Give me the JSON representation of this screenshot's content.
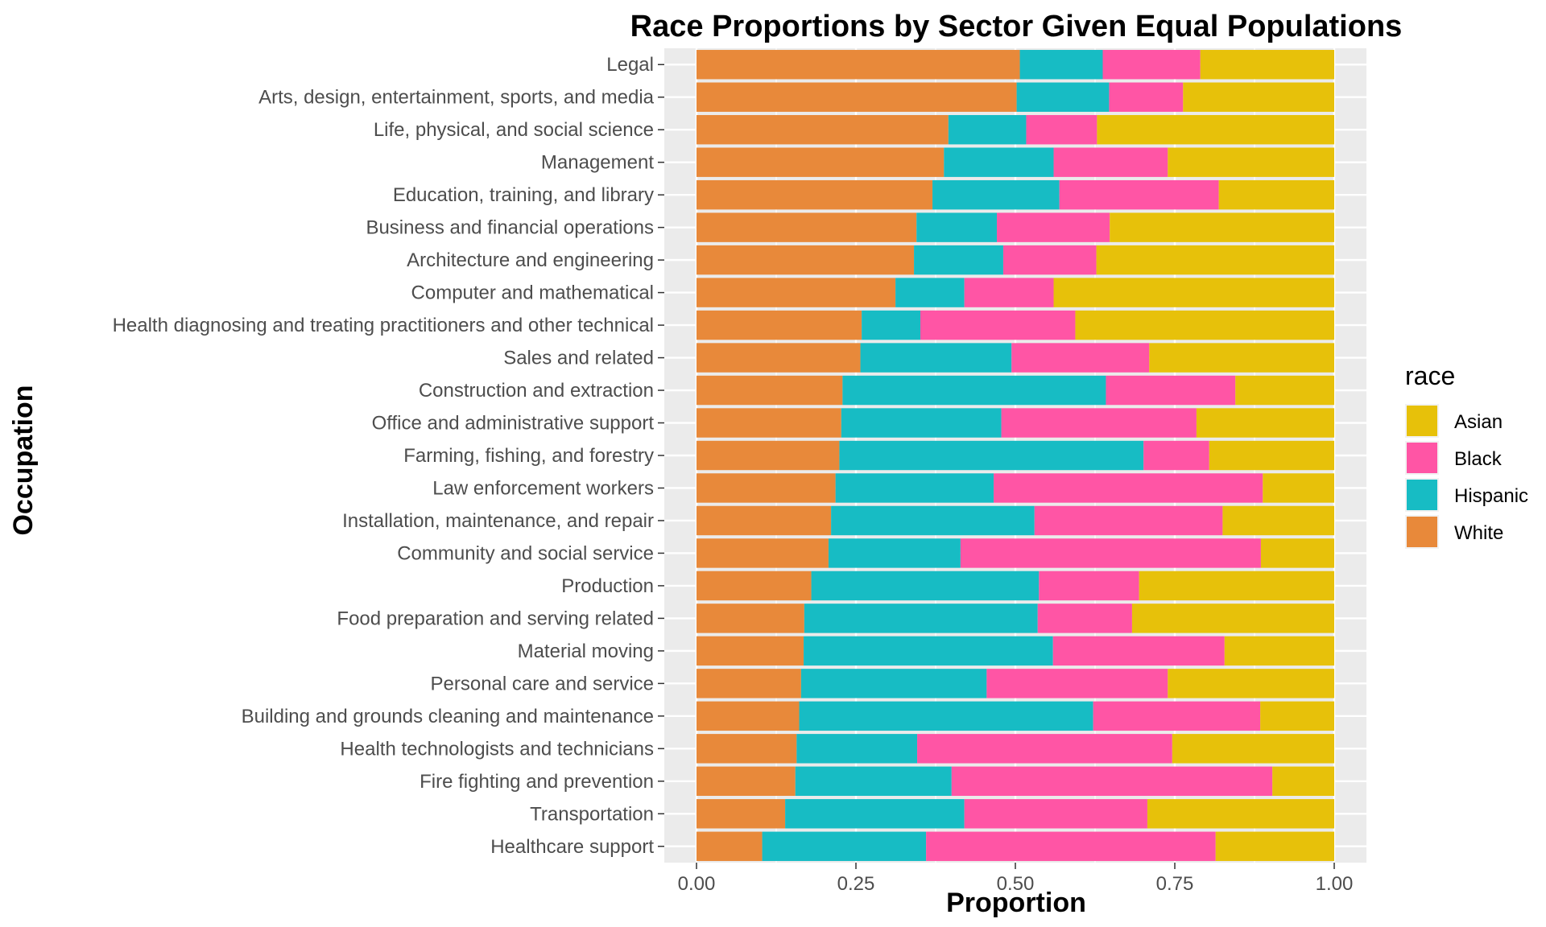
{
  "chart_data": {
    "type": "bar",
    "orientation": "horizontal",
    "stacked": true,
    "title": "Race Proportions by Sector Given Equal Populations",
    "xlabel": "Proportion",
    "ylabel": "Occupation",
    "xlim": [
      0,
      1
    ],
    "x_ticks": [
      "0.00",
      "0.25",
      "0.50",
      "0.75",
      "1.00"
    ],
    "grid": true,
    "legend": {
      "title": "race",
      "position": "right",
      "entries": [
        "Asian",
        "Black",
        "Hispanic",
        "White"
      ]
    },
    "categories": [
      "Legal",
      "Arts, design, entertainment, sports, and media",
      "Life, physical, and social science",
      "Management",
      "Education, training, and library",
      "Business and financial operations",
      "Architecture and engineering",
      "Computer and mathematical",
      "Health diagnosing and treating practitioners and other technical",
      "Sales and related",
      "Construction and extraction",
      "Office and administrative support",
      "Farming, fishing, and forestry",
      "Law enforcement workers",
      "Installation, maintenance, and repair",
      "Community and social service",
      "Production",
      "Food preparation and serving related",
      "Material moving",
      "Personal care and service",
      "Building and grounds cleaning and maintenance",
      "Health technologists and technicians",
      "Fire fighting and prevention",
      "Transportation",
      "Healthcare support"
    ],
    "series": [
      {
        "name": "White",
        "color": "#e8893a",
        "values": [
          0.507,
          0.502,
          0.395,
          0.388,
          0.37,
          0.345,
          0.341,
          0.312,
          0.259,
          0.257,
          0.229,
          0.227,
          0.224,
          0.218,
          0.211,
          0.207,
          0.18,
          0.169,
          0.168,
          0.164,
          0.161,
          0.157,
          0.155,
          0.139,
          0.103
        ]
      },
      {
        "name": "Hispanic",
        "color": "#17bcc4",
        "values": [
          0.13,
          0.145,
          0.122,
          0.172,
          0.199,
          0.126,
          0.14,
          0.108,
          0.092,
          0.237,
          0.413,
          0.251,
          0.477,
          0.248,
          0.319,
          0.207,
          0.357,
          0.366,
          0.391,
          0.291,
          0.461,
          0.189,
          0.245,
          0.281,
          0.257
        ]
      },
      {
        "name": "Black",
        "color": "#ff55a5",
        "values": [
          0.153,
          0.116,
          0.111,
          0.179,
          0.25,
          0.177,
          0.146,
          0.14,
          0.243,
          0.216,
          0.203,
          0.306,
          0.103,
          0.422,
          0.295,
          0.471,
          0.157,
          0.148,
          0.269,
          0.284,
          0.262,
          0.4,
          0.503,
          0.287,
          0.454
        ]
      },
      {
        "name": "Asian",
        "color": "#e7c10a",
        "values": [
          0.21,
          0.237,
          0.372,
          0.261,
          0.181,
          0.352,
          0.373,
          0.44,
          0.406,
          0.29,
          0.155,
          0.216,
          0.196,
          0.112,
          0.175,
          0.115,
          0.306,
          0.317,
          0.172,
          0.261,
          0.116,
          0.254,
          0.097,
          0.293,
          0.186
        ]
      }
    ]
  }
}
